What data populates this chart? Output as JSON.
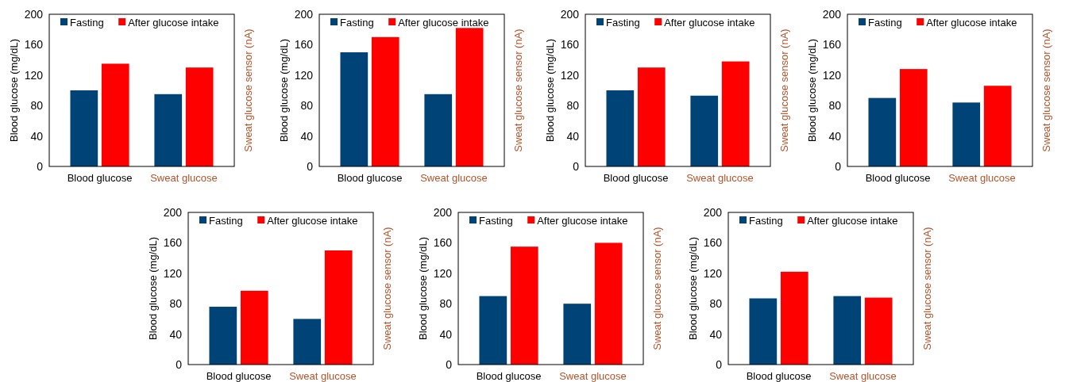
{
  "chart_data": [
    {
      "type": "bar",
      "categories": [
        "Blood glucose",
        "Sweat glucose"
      ],
      "ylabel": "Blood glucose  (mg/dL)",
      "y2label": "Sweat glucose  sensor (nA)",
      "ylim": [
        0,
        200
      ],
      "yticks": [
        0,
        40,
        80,
        120,
        160,
        200
      ],
      "legend": "top",
      "series": [
        {
          "name": "Fasting",
          "color": "#004477",
          "values": [
            100,
            95
          ]
        },
        {
          "name": "After glucose intake",
          "color": "#ff0000",
          "values": [
            135,
            130
          ]
        }
      ]
    },
    {
      "type": "bar",
      "categories": [
        "Blood glucose",
        "Sweat glucose"
      ],
      "ylabel": "Blood glucose  (mg/dL)",
      "y2label": "Sweat glucose  sensor (nA)",
      "ylim": [
        0,
        200
      ],
      "yticks": [
        0,
        40,
        80,
        120,
        160,
        200
      ],
      "legend": "top",
      "series": [
        {
          "name": "Fasting",
          "color": "#004477",
          "values": [
            150,
            95
          ]
        },
        {
          "name": "After glucose intake",
          "color": "#ff0000",
          "values": [
            170,
            182
          ]
        }
      ]
    },
    {
      "type": "bar",
      "categories": [
        "Blood glucose",
        "Sweat glucose"
      ],
      "ylabel": "Blood glucose  (mg/dL)",
      "y2label": "Sweat glucose  sensor (nA)",
      "ylim": [
        0,
        200
      ],
      "yticks": [
        0,
        40,
        80,
        120,
        160,
        200
      ],
      "legend": "top",
      "series": [
        {
          "name": "Fasting",
          "color": "#004477",
          "values": [
            100,
            93
          ]
        },
        {
          "name": "After glucose intake",
          "color": "#ff0000",
          "values": [
            130,
            138
          ]
        }
      ]
    },
    {
      "type": "bar",
      "categories": [
        "Blood glucose",
        "Sweat glucose"
      ],
      "ylabel": "Blood glucose  (mg/dL)",
      "y2label": "Sweat glucose  sensor (nA)",
      "ylim": [
        0,
        200
      ],
      "yticks": [
        0,
        40,
        80,
        120,
        160,
        200
      ],
      "legend": "top",
      "series": [
        {
          "name": "Fasting",
          "color": "#004477",
          "values": [
            90,
            84
          ]
        },
        {
          "name": "After glucose intake",
          "color": "#ff0000",
          "values": [
            128,
            106
          ]
        }
      ]
    },
    {
      "type": "bar",
      "categories": [
        "Blood glucose",
        "Sweat glucose"
      ],
      "ylabel": "Blood glucose  (mg/dL)",
      "y2label": "Sweat glucose  sensor (nA)",
      "ylim": [
        0,
        200
      ],
      "yticks": [
        0,
        40,
        80,
        120,
        160,
        200
      ],
      "legend": "top",
      "series": [
        {
          "name": "Fasting",
          "color": "#004477",
          "values": [
            76,
            60
          ]
        },
        {
          "name": "After glucose intake",
          "color": "#ff0000",
          "values": [
            97,
            150
          ]
        }
      ]
    },
    {
      "type": "bar",
      "categories": [
        "Blood glucose",
        "Sweat glucose"
      ],
      "ylabel": "Blood glucose  (mg/dL)",
      "y2label": "Sweat glucose  sensor (nA)",
      "ylim": [
        0,
        200
      ],
      "yticks": [
        0,
        40,
        80,
        120,
        160,
        200
      ],
      "legend": "top",
      "series": [
        {
          "name": "Fasting",
          "color": "#004477",
          "values": [
            90,
            80
          ]
        },
        {
          "name": "After glucose intake",
          "color": "#ff0000",
          "values": [
            155,
            160
          ]
        }
      ]
    },
    {
      "type": "bar",
      "categories": [
        "Blood glucose",
        "Sweat glucose"
      ],
      "ylabel": "Blood glucose  (mg/dL)",
      "y2label": "Sweat glucose  sensor (nA)",
      "ylim": [
        0,
        200
      ],
      "yticks": [
        0,
        40,
        80,
        120,
        160,
        200
      ],
      "legend": "top",
      "series": [
        {
          "name": "Fasting",
          "color": "#004477",
          "values": [
            87,
            90
          ]
        },
        {
          "name": "After glucose intake",
          "color": "#ff0000",
          "values": [
            122,
            88
          ]
        }
      ]
    }
  ]
}
